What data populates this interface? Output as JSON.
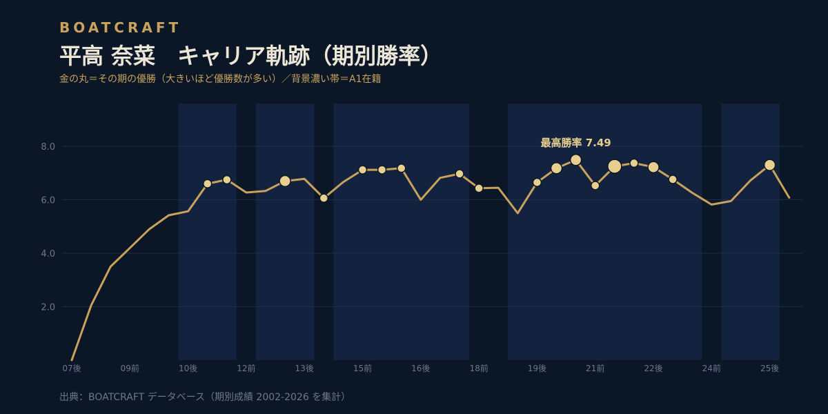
{
  "header": {
    "brand": "BOATCRAFT",
    "title": "平高 奈菜　キャリア軌跡（期別勝率）",
    "subtitle": "金の丸＝その期の優勝（大きいほど優勝数が多い）／背景濃い帯＝A1在籍",
    "source": "出典：BOATCRAFT データベース（期別成績 2002-2026 を集計）"
  },
  "colors": {
    "background": "#0b1627",
    "band": "#13233f",
    "grid": "#1f2e47",
    "line": "#c9a35c",
    "dot": "#e7cf8f",
    "dot_stroke": "#0b1627",
    "tick_text": "#6c7890",
    "annotation": "#e7cf8f"
  },
  "chart_data": {
    "type": "line",
    "x": [
      "07後",
      "08前",
      "08後",
      "09前",
      "09後",
      "10前",
      "10後",
      "11前",
      "11後",
      "12前",
      "12後",
      "13前",
      "13後",
      "14前",
      "14後",
      "15前",
      "15後",
      "16前",
      "16後",
      "17前",
      "17後",
      "18前",
      "18後",
      "19前",
      "19後",
      "20前",
      "20後",
      "21前",
      "21後",
      "22前",
      "22後",
      "23前",
      "23後",
      "24前",
      "24後",
      "25前",
      "25後",
      "26前"
    ],
    "xticks": [
      "07後",
      "09前",
      "10後",
      "12前",
      "13後",
      "15前",
      "16後",
      "18前",
      "19後",
      "21前",
      "22後",
      "24前",
      "25後"
    ],
    "series": [
      {
        "values": [
          0.0,
          2.05,
          3.5,
          4.2,
          4.9,
          5.42,
          5.57,
          6.6,
          6.75,
          6.27,
          6.33,
          6.7,
          6.78,
          6.06,
          6.66,
          7.12,
          7.12,
          7.18,
          6.0,
          6.82,
          6.97,
          6.43,
          6.45,
          5.5,
          6.65,
          7.18,
          7.49,
          6.53,
          7.25,
          7.37,
          7.22,
          6.76,
          6.26,
          5.82,
          5.95,
          6.72,
          7.3,
          6.08
        ]
      }
    ],
    "wins": [
      0,
      0,
      0,
      0,
      0,
      0,
      0,
      1,
      1,
      0,
      0,
      2,
      0,
      1,
      0,
      1,
      1,
      1,
      0,
      0,
      1,
      1,
      0,
      0,
      1,
      2,
      2,
      1,
      3,
      1,
      2,
      1,
      0,
      0,
      0,
      0,
      2,
      0
    ],
    "a1_bands": [
      [
        "10後",
        "11後"
      ],
      [
        "12後",
        "13後"
      ],
      [
        "14後",
        "16前"
      ],
      [
        "16後",
        "17後"
      ],
      [
        "19前",
        "23後"
      ],
      [
        "24後",
        "25後"
      ]
    ],
    "annotation": "最高勝率 7.49",
    "yticks": [
      2.0,
      4.0,
      6.0,
      8.0
    ],
    "ylim": [
      0,
      9.6
    ],
    "grid": true
  }
}
